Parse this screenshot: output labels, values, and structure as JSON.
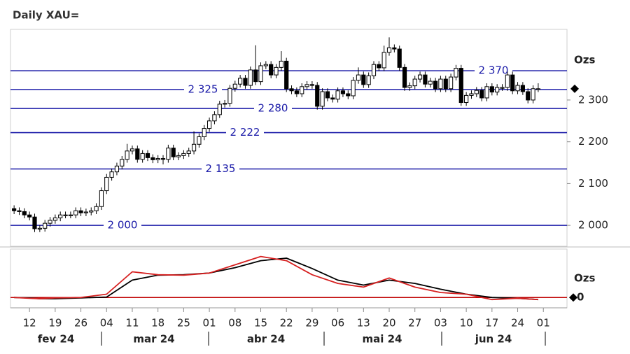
{
  "chart_data": [
    {
      "type": "candlestick",
      "title": "Daily XAU=",
      "y_label": "Ozs",
      "x": [
        -3,
        -2,
        -1,
        0,
        1,
        2,
        3,
        4,
        5,
        6,
        7,
        8,
        9,
        10,
        11,
        12,
        13,
        14,
        15,
        16,
        17,
        18,
        19,
        20,
        21,
        22,
        23,
        24,
        25,
        26,
        27,
        28,
        29,
        30,
        31,
        32,
        33,
        34,
        35,
        36,
        37,
        38,
        39,
        40,
        41,
        42,
        43,
        44,
        45,
        46,
        47,
        48,
        49,
        50,
        51,
        52,
        53,
        54,
        55,
        56,
        57,
        58,
        59,
        60,
        61,
        62,
        63,
        64,
        65,
        66,
        67,
        68,
        69,
        70,
        71,
        72,
        73,
        74,
        75,
        76,
        77,
        78,
        79,
        80,
        81,
        82,
        83,
        84,
        85,
        86,
        87,
        88,
        89,
        90,
        91,
        92,
        93,
        94,
        95,
        96,
        97,
        98,
        99
      ],
      "open": [
        2040,
        2035,
        2033,
        2025,
        2020,
        1992,
        1993,
        2005,
        2012,
        2018,
        2025,
        2025,
        2025,
        2035,
        2030,
        2032,
        2035,
        2045,
        2083,
        2115,
        2128,
        2142,
        2158,
        2178,
        2183,
        2158,
        2172,
        2162,
        2157,
        2160,
        2158,
        2185,
        2164,
        2167,
        2172,
        2178,
        2194,
        2212,
        2232,
        2250,
        2265,
        2290,
        2292,
        2328,
        2338,
        2352,
        2335,
        2372,
        2344,
        2382,
        2385,
        2360,
        2378,
        2393,
        2327,
        2322,
        2315,
        2332,
        2337,
        2335,
        2285,
        2320,
        2305,
        2302,
        2322,
        2315,
        2310,
        2347,
        2360,
        2337,
        2358,
        2385,
        2377,
        2414,
        2425,
        2422,
        2378,
        2330,
        2334,
        2350,
        2360,
        2338,
        2345,
        2327,
        2350,
        2327,
        2355,
        2376,
        2294,
        2311,
        2315,
        2323,
        2305,
        2332,
        2319,
        2330,
        2330,
        2360,
        2322,
        2335,
        2320,
        2300,
        2327
      ],
      "high": [
        2048,
        2043,
        2041,
        2033,
        2028,
        2001,
        2013,
        2020,
        2026,
        2033,
        2033,
        2033,
        2043,
        2043,
        2040,
        2043,
        2053,
        2091,
        2123,
        2136,
        2150,
        2166,
        2195,
        2191,
        2191,
        2180,
        2180,
        2170,
        2168,
        2168,
        2193,
        2193,
        2175,
        2180,
        2186,
        2225,
        2220,
        2240,
        2258,
        2273,
        2298,
        2300,
        2336,
        2346,
        2360,
        2360,
        2380,
        2431,
        2390,
        2393,
        2393,
        2386,
        2417,
        2401,
        2335,
        2330,
        2340,
        2345,
        2345,
        2343,
        2328,
        2328,
        2313,
        2330,
        2330,
        2323,
        2355,
        2378,
        2368,
        2366,
        2393,
        2393,
        2430,
        2450,
        2433,
        2430,
        2386,
        2342,
        2358,
        2368,
        2368,
        2353,
        2353,
        2358,
        2358,
        2363,
        2384,
        2384,
        2319,
        2323,
        2331,
        2331,
        2340,
        2340,
        2338,
        2338,
        2368,
        2368,
        2343,
        2343,
        2328,
        2335,
        2340
      ],
      "low": [
        2027,
        2025,
        2017,
        2012,
        1984,
        1984,
        1985,
        1997,
        2004,
        2010,
        2017,
        2017,
        2017,
        2022,
        2022,
        2024,
        2027,
        2037,
        2075,
        2107,
        2120,
        2134,
        2150,
        2170,
        2150,
        2150,
        2154,
        2149,
        2149,
        2146,
        2150,
        2156,
        2156,
        2159,
        2164,
        2170,
        2186,
        2204,
        2224,
        2242,
        2257,
        2282,
        2284,
        2320,
        2330,
        2327,
        2327,
        2336,
        2336,
        2374,
        2352,
        2352,
        2370,
        2319,
        2314,
        2307,
        2307,
        2324,
        2327,
        2277,
        2277,
        2297,
        2294,
        2294,
        2307,
        2302,
        2302,
        2339,
        2329,
        2329,
        2350,
        2369,
        2369,
        2406,
        2414,
        2370,
        2322,
        2322,
        2326,
        2342,
        2330,
        2330,
        2319,
        2319,
        2319,
        2319,
        2347,
        2286,
        2286,
        2303,
        2307,
        2297,
        2297,
        2311,
        2311,
        2322,
        2322,
        2314,
        2314,
        2312,
        2292,
        2292,
        2319
      ],
      "close": [
        2035,
        2033,
        2025,
        2020,
        1992,
        1993,
        2005,
        2012,
        2018,
        2025,
        2025,
        2025,
        2035,
        2030,
        2032,
        2035,
        2045,
        2083,
        2115,
        2128,
        2142,
        2158,
        2178,
        2183,
        2158,
        2172,
        2162,
        2157,
        2160,
        2158,
        2185,
        2164,
        2167,
        2172,
        2178,
        2194,
        2212,
        2232,
        2250,
        2265,
        2290,
        2292,
        2328,
        2338,
        2352,
        2335,
        2372,
        2344,
        2382,
        2385,
        2360,
        2378,
        2393,
        2327,
        2322,
        2315,
        2332,
        2337,
        2335,
        2285,
        2320,
        2305,
        2302,
        2322,
        2315,
        2310,
        2347,
        2360,
        2337,
        2358,
        2385,
        2377,
        2414,
        2425,
        2422,
        2378,
        2330,
        2334,
        2350,
        2360,
        2338,
        2345,
        2327,
        2350,
        2327,
        2355,
        2376,
        2294,
        2311,
        2315,
        2323,
        2305,
        2332,
        2319,
        2330,
        2330,
        2360,
        2322,
        2335,
        2320,
        2300,
        2327,
        2327
      ],
      "up_color": "#ffffff",
      "down_color": "#000000",
      "levels": [
        {
          "value": 2370,
          "label": "2 370"
        },
        {
          "value": 2325,
          "label": "2 325"
        },
        {
          "value": 2280,
          "label": "2 280"
        },
        {
          "value": 2222,
          "label": "2 222"
        },
        {
          "value": 2135,
          "label": "2 135"
        },
        {
          "value": 2000,
          "label": "2 000"
        }
      ],
      "level_color": "#1a1aa8",
      "xlim": [
        -3.7,
        104.6
      ],
      "xticks": [
        {
          "value": 0,
          "label": "12"
        },
        {
          "value": 5,
          "label": "19"
        },
        {
          "value": 10,
          "label": "26"
        },
        {
          "value": 15,
          "label": "04"
        },
        {
          "value": 20,
          "label": "11"
        },
        {
          "value": 25,
          "label": "18"
        },
        {
          "value": 30,
          "label": "25"
        },
        {
          "value": 35,
          "label": "01"
        },
        {
          "value": 40,
          "label": "08"
        },
        {
          "value": 45,
          "label": "15"
        },
        {
          "value": 50,
          "label": "22"
        },
        {
          "value": 55,
          "label": "29"
        },
        {
          "value": 60,
          "label": "06"
        },
        {
          "value": 65,
          "label": "13"
        },
        {
          "value": 70,
          "label": "20"
        },
        {
          "value": 75,
          "label": "27"
        },
        {
          "value": 80,
          "label": "03"
        },
        {
          "value": 85,
          "label": "10"
        },
        {
          "value": 90,
          "label": "17"
        },
        {
          "value": 95,
          "label": "24"
        },
        {
          "value": 100,
          "label": "01"
        }
      ],
      "x_groups": [
        "fev 24",
        "mar 24",
        "abr 24",
        "mai 24",
        "jun 24"
      ],
      "ylim": [
        1950,
        2469
      ],
      "yticks": [
        {
          "value": 2000,
          "label": "2 000"
        },
        {
          "value": 2100,
          "label": "2 100"
        },
        {
          "value": 2200,
          "label": "2 200"
        },
        {
          "value": 2300,
          "label": "2 300"
        }
      ]
    },
    {
      "type": "line",
      "y_label": "Ozs",
      "x": [
        -3,
        0,
        2,
        5,
        10,
        15,
        20,
        25,
        30,
        35,
        40,
        45,
        50,
        55,
        60,
        65,
        70,
        75,
        80,
        85,
        90,
        95,
        99
      ],
      "series": [
        {
          "color": "#000000",
          "values": [
            0,
            -1,
            -3,
            -3,
            -1,
            1,
            42,
            54,
            55,
            59,
            72,
            89,
            95,
            70,
            42,
            30,
            42,
            34,
            20,
            8,
            0,
            -2,
            -5
          ]
        },
        {
          "color": "#d62020",
          "values": [
            0,
            -2,
            -3,
            -1,
            0,
            8,
            62,
            55,
            54,
            59,
            79,
            99,
            89,
            55,
            34,
            25,
            47,
            25,
            12,
            8,
            -5,
            -2,
            -5
          ]
        }
      ],
      "zero_color": "#c00000",
      "xlim": [
        -3.7,
        104.6
      ],
      "ylim": [
        -25,
        117
      ],
      "yticks": [
        0
      ]
    }
  ]
}
